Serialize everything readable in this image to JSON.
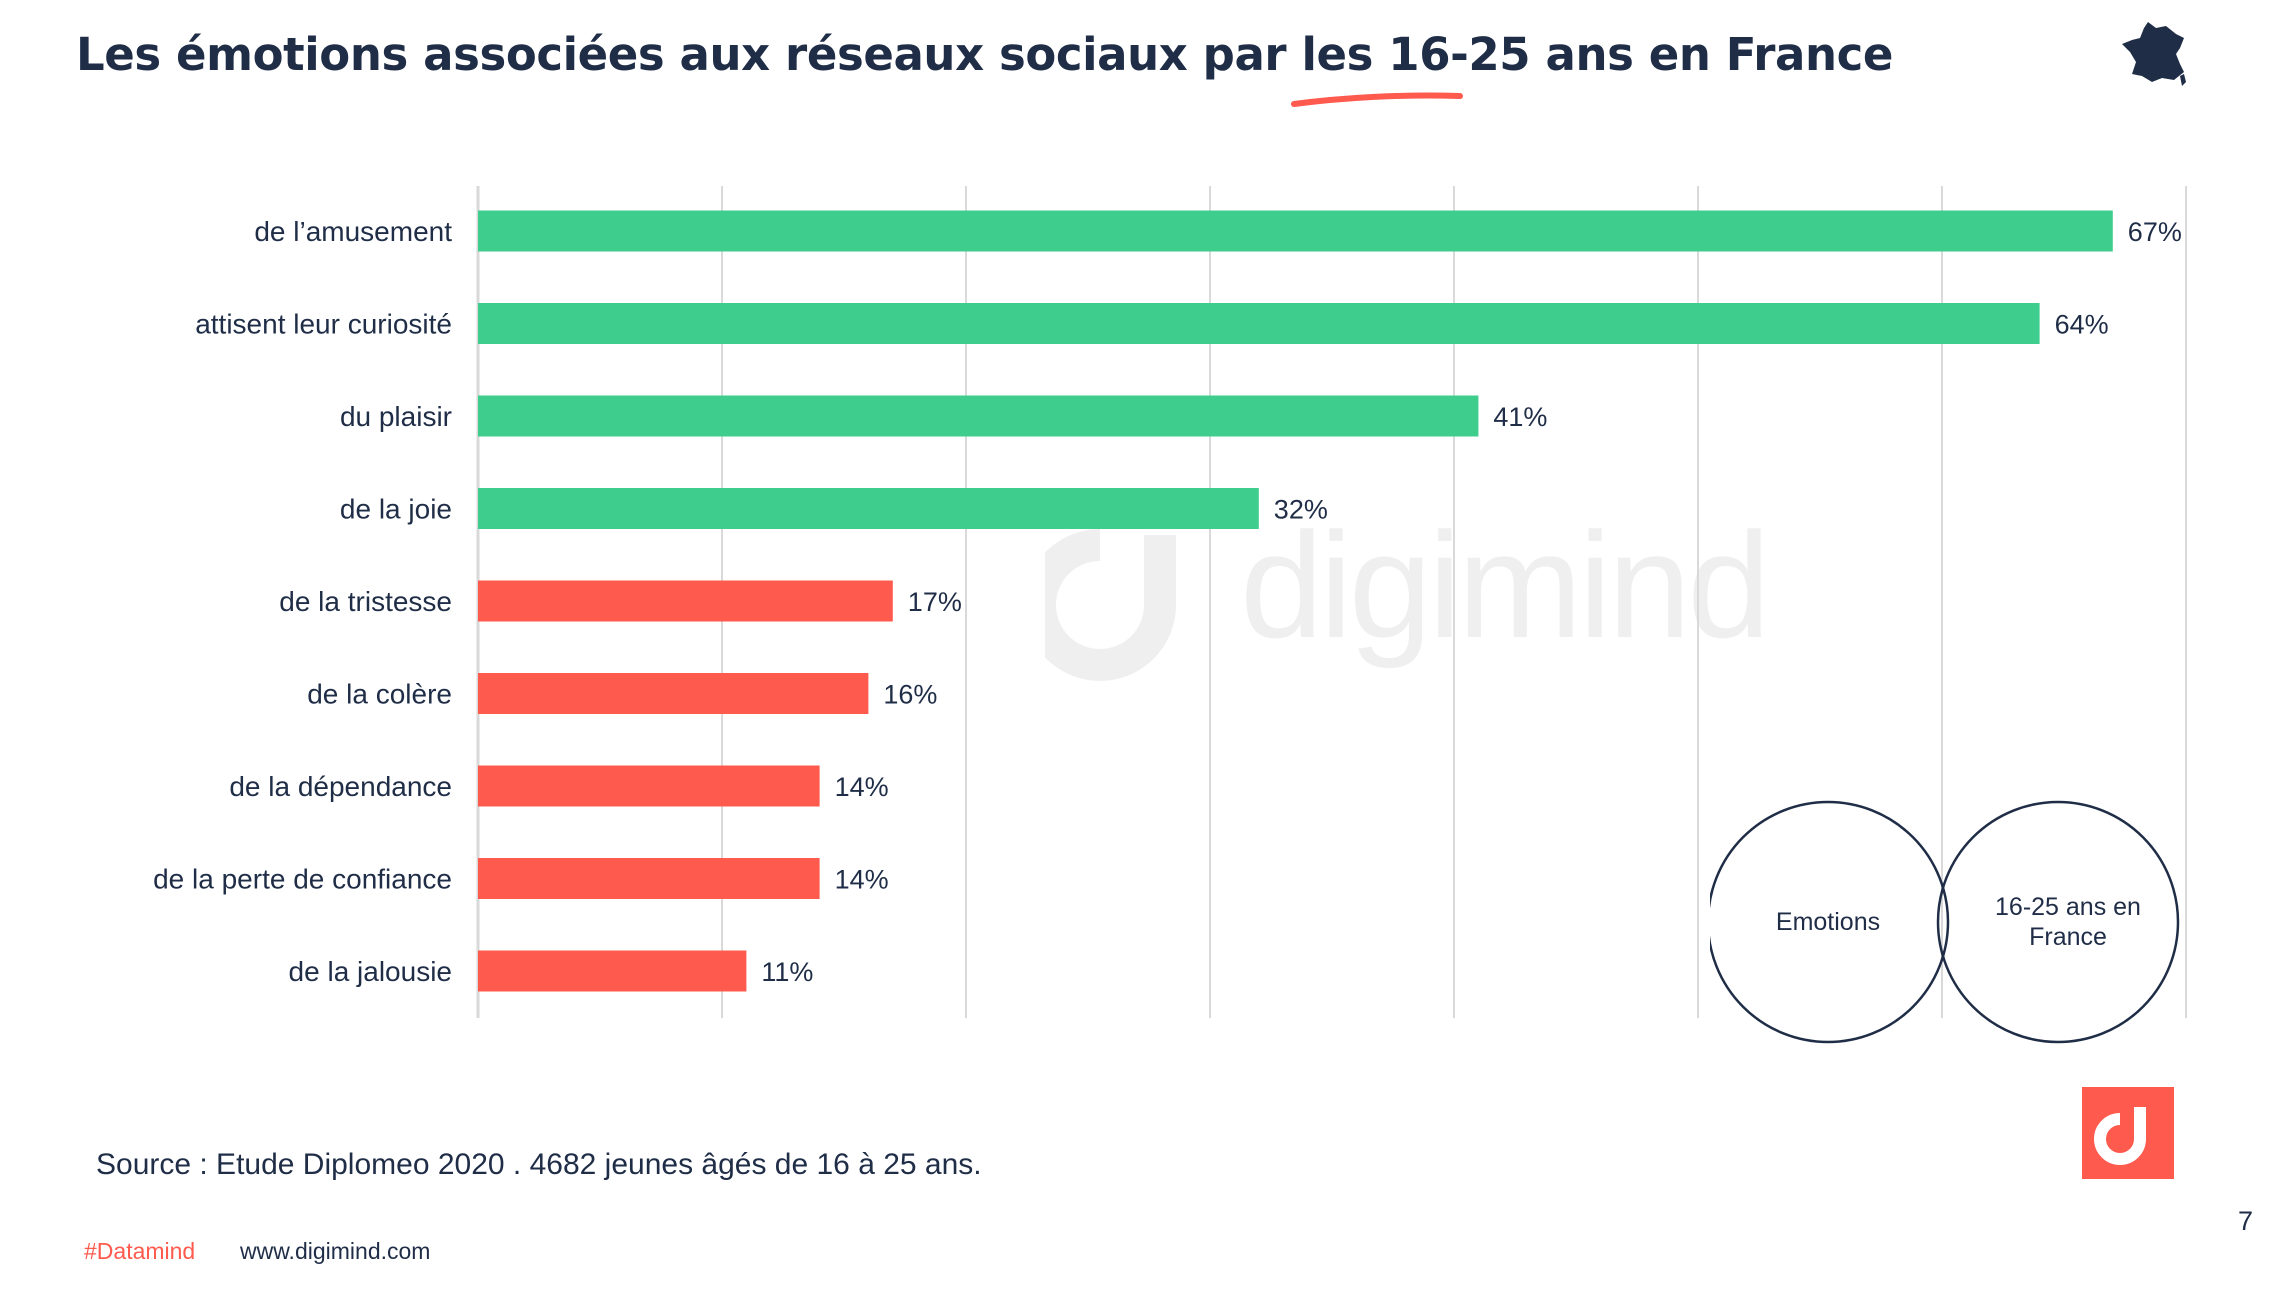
{
  "header": {
    "title": "Les émotions associées aux réseaux sociaux par les 16-25 ans en France",
    "flag_icon": "france-map-icon"
  },
  "chart_data": {
    "type": "bar",
    "orientation": "horizontal",
    "categories": [
      "de l’amusement",
      "attisent leur curiosité",
      "du plaisir",
      "de la joie",
      "de la tristesse",
      "de la colère",
      "de la dépendance",
      "de la perte de confiance",
      "de la jalousie"
    ],
    "values": [
      67,
      64,
      41,
      32,
      17,
      16,
      14,
      14,
      11
    ],
    "value_labels": [
      "67%",
      "64%",
      "41%",
      "32%",
      "17%",
      "16%",
      "14%",
      "14%",
      "11%"
    ],
    "sentiment": [
      "positive",
      "positive",
      "positive",
      "positive",
      "negative",
      "negative",
      "negative",
      "negative",
      "negative"
    ],
    "colors": {
      "positive": "#3ecd8c",
      "negative": "#ff5a4e",
      "grid": "#d9d9d9",
      "label": "#1f2d47"
    },
    "xlim": [
      0,
      70
    ],
    "grid": true,
    "title": "",
    "xlabel": "",
    "ylabel": ""
  },
  "venn": {
    "left_label": "Emotions",
    "right_label": "16-25 ans en France"
  },
  "watermark": {
    "text": "digimind"
  },
  "footer": {
    "source": "Source : Etude Diplomeo 2020 . 4682 jeunes âgés de 16 à 25 ans.",
    "hashtag": "#Datamind",
    "url": "www.digimind.com",
    "page_number": "7",
    "logo_icon": "digimind-logo-icon"
  }
}
